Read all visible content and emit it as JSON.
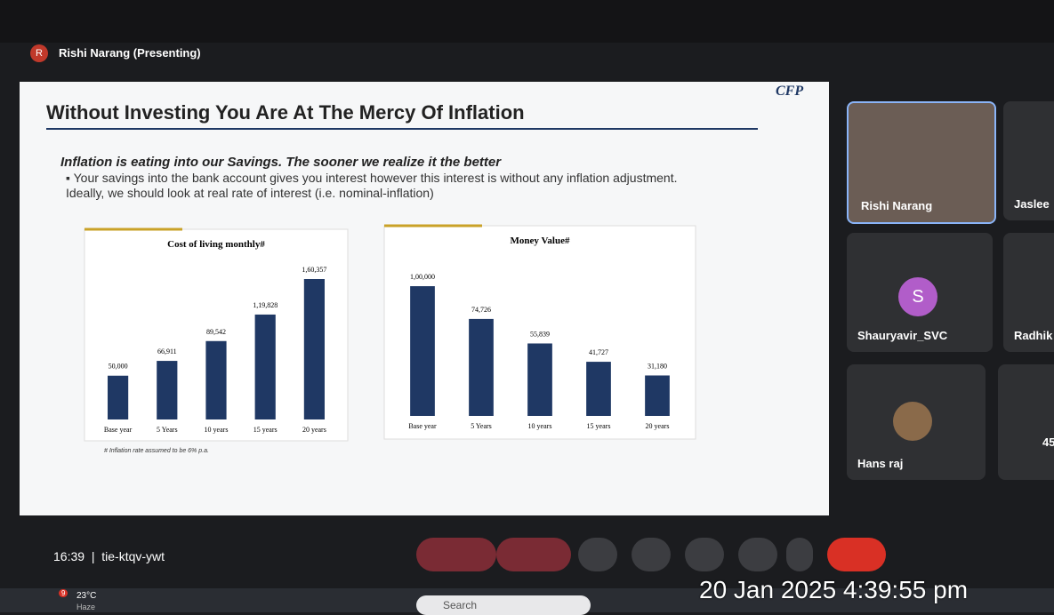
{
  "meeting": {
    "presenter_initial": "R",
    "presenter": "Rishi Narang (Presenting)",
    "time": "16:39",
    "code": "tie-ktqv-ywt"
  },
  "slide": {
    "title": "Without Investing You Are At The Mercy Of Inflation",
    "logo": "CFP",
    "subtitle": "Inflation is eating into our Savings. The sooner we realize it the better",
    "bullet": "Your savings into the bank account gives you interest however this interest is without any inflation adjustment. Ideally, we should look at real rate of interest (i.e. nominal-inflation)",
    "footnote": "# Inflation rate assumed to be 6% p.a.",
    "charts": [
      {
        "type": "bar",
        "title": "Cost of living monthly#",
        "color": "#1f3864",
        "categories": [
          "Base year",
          "5 Years",
          "10 years",
          "15 years",
          "20 years"
        ],
        "values": [
          50000,
          66911,
          89542,
          119828,
          160357
        ],
        "value_labels": [
          "50,000",
          "66,911",
          "89,542",
          "1,19,828",
          "1,60,357"
        ]
      },
      {
        "type": "bar",
        "title": "Money Value#",
        "color": "#1f3864",
        "categories": [
          "Base year",
          "5 Years",
          "10 years",
          "15 years",
          "20 years"
        ],
        "values": [
          100000,
          74726,
          55839,
          41727,
          31180
        ],
        "value_labels": [
          "1,00,000",
          "74,726",
          "55,839",
          "41,727",
          "31,180"
        ]
      }
    ]
  },
  "participants": [
    {
      "name": "Rishi Narang"
    },
    {
      "name": "Jaslee"
    },
    {
      "initial": "S",
      "name": "Shauryavir_SVC"
    },
    {
      "name": "Radhik"
    },
    {
      "name": "Hans raj"
    },
    {
      "name": "45"
    }
  ],
  "taskbar": {
    "badge": "9",
    "temperature": "23°C",
    "weather": "Haze",
    "search": "Search",
    "timestamp": "20 Jan 2025 4:39:55 pm"
  }
}
